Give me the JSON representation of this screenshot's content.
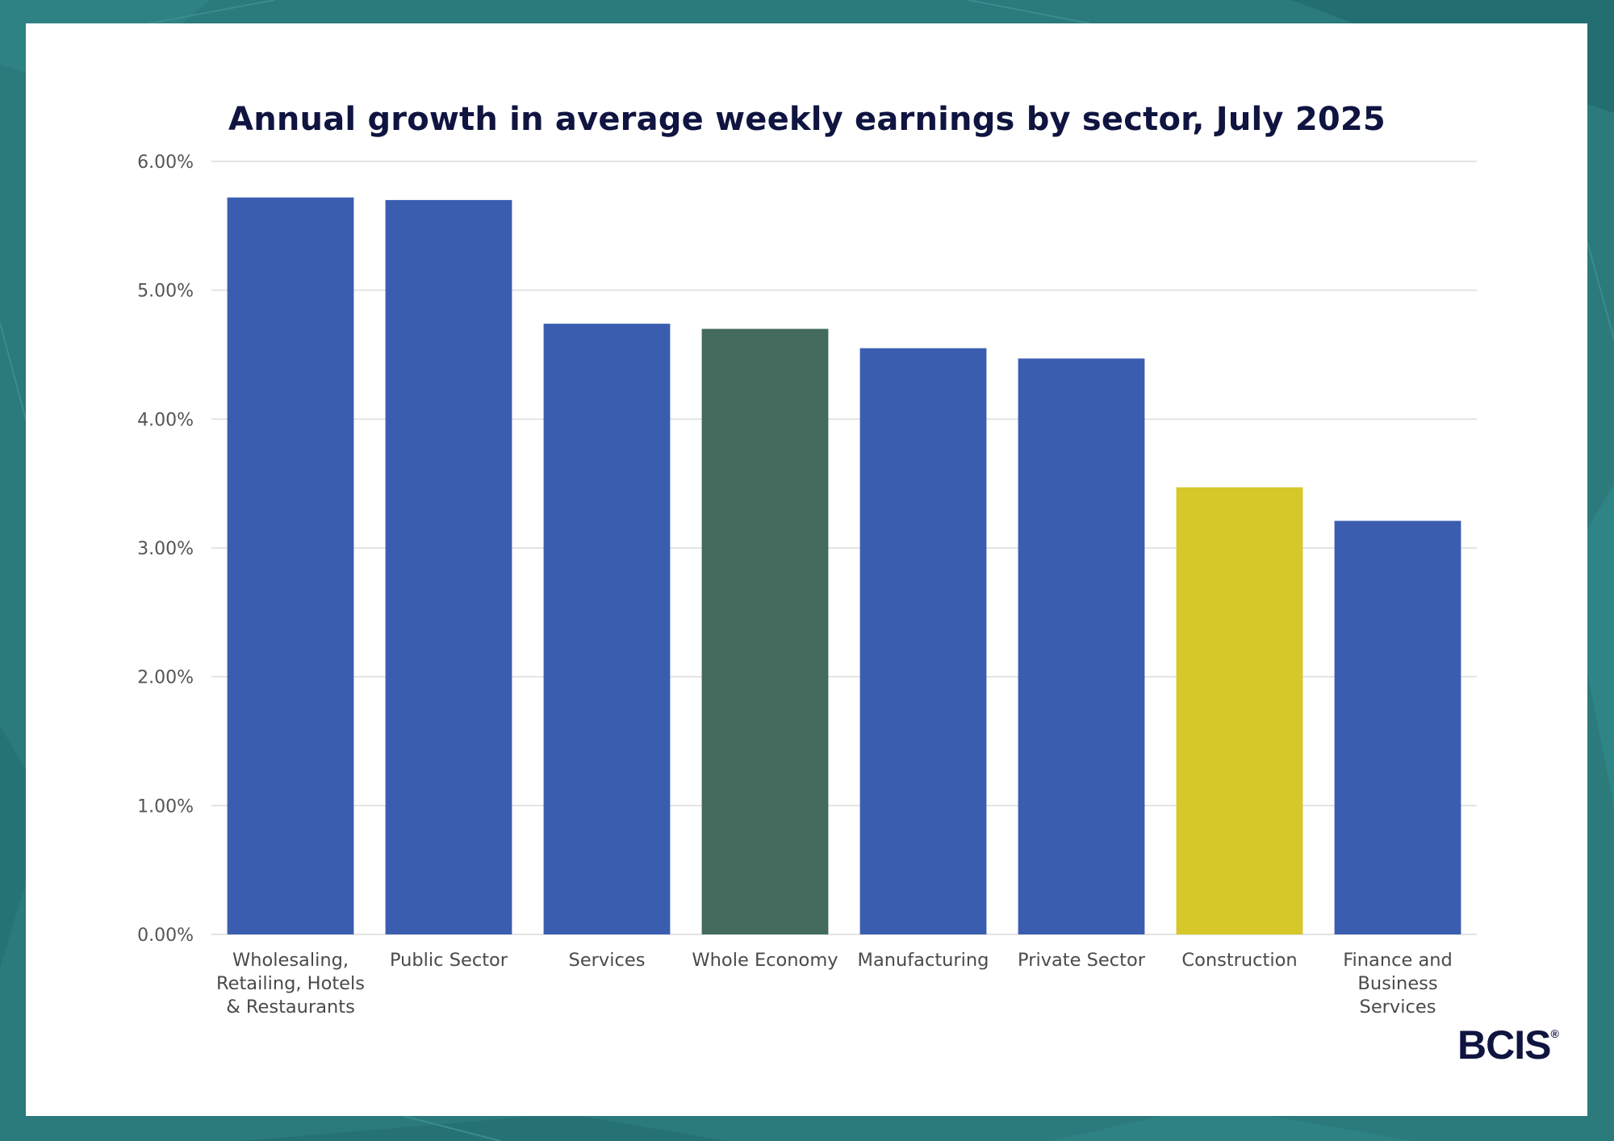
{
  "brand": {
    "logo_text": "BCIS",
    "logo_mark": "®",
    "background_color": "#2b7a7c"
  },
  "chart_data": {
    "type": "bar",
    "title": "Annual growth in average weekly earnings by sector, July 2025",
    "xlabel": "",
    "ylabel": "",
    "ylim": [
      0,
      0.06
    ],
    "yticks": [
      0,
      0.01,
      0.02,
      0.03,
      0.04,
      0.05,
      0.06
    ],
    "ytick_labels": [
      "0.00%",
      "1.00%",
      "2.00%",
      "3.00%",
      "4.00%",
      "5.00%",
      "6.00%"
    ],
    "grid": true,
    "legend": "none",
    "categories": [
      "Wholesaling, Retailing, Hotels & Restaurants",
      "Public Sector",
      "Services",
      "Whole Economy",
      "Manufacturing",
      "Private Sector",
      "Construction",
      "Finance and Business Services"
    ],
    "category_lines": [
      [
        "Wholesaling,",
        "Retailing, Hotels",
        "& Restaurants"
      ],
      [
        "Public Sector"
      ],
      [
        "Services"
      ],
      [
        "Whole Economy"
      ],
      [
        "Manufacturing"
      ],
      [
        "Private Sector"
      ],
      [
        "Construction"
      ],
      [
        "Finance and",
        "Business",
        "Services"
      ]
    ],
    "values": [
      0.0572,
      0.057,
      0.0474,
      0.047,
      0.0455,
      0.0447,
      0.0347,
      0.0321
    ],
    "colors": [
      "#3a5db0",
      "#3a5db0",
      "#3a5db0",
      "#436a5c",
      "#3a5db0",
      "#3a5db0",
      "#d6c829",
      "#3a5db0"
    ]
  }
}
